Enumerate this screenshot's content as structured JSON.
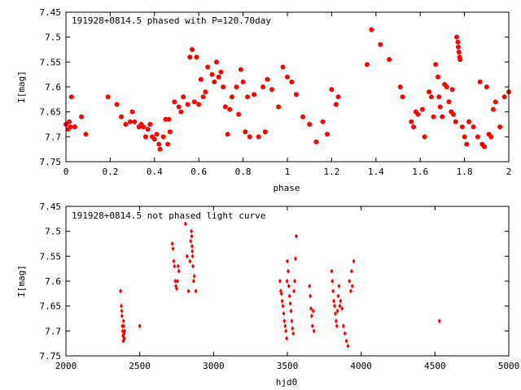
{
  "chart_data": [
    {
      "type": "scatter",
      "title": "191928+0814.5 phased with P=120.70day",
      "xlabel": "phase",
      "ylabel": "I[mag]",
      "xlim": [
        0,
        2
      ],
      "ylim": [
        7.75,
        7.45
      ],
      "y_inverted": true,
      "xticks": [
        0,
        0.2,
        0.4,
        0.6,
        0.8,
        1,
        1.2,
        1.4,
        1.6,
        1.8,
        2
      ],
      "yticks": [
        7.45,
        7.5,
        7.55,
        7.6,
        7.65,
        7.7,
        7.75
      ],
      "marker_color": "#ff0000",
      "marker": "filled-circle",
      "grid": false,
      "points": [
        [
          0.0,
          7.675
        ],
        [
          0.01,
          7.685
        ],
        [
          0.015,
          7.67
        ],
        [
          0.02,
          7.68
        ],
        [
          0.025,
          7.62
        ],
        [
          0.04,
          7.68
        ],
        [
          0.07,
          7.66
        ],
        [
          0.09,
          7.695
        ],
        [
          0.19,
          7.62
        ],
        [
          0.23,
          7.635
        ],
        [
          0.25,
          7.66
        ],
        [
          0.27,
          7.675
        ],
        [
          0.29,
          7.67
        ],
        [
          0.3,
          7.65
        ],
        [
          0.31,
          7.67
        ],
        [
          0.33,
          7.68
        ],
        [
          0.34,
          7.675
        ],
        [
          0.35,
          7.68
        ],
        [
          0.36,
          7.7
        ],
        [
          0.37,
          7.685
        ],
        [
          0.38,
          7.675
        ],
        [
          0.39,
          7.7
        ],
        [
          0.4,
          7.705
        ],
        [
          0.41,
          7.695
        ],
        [
          0.42,
          7.715
        ],
        [
          0.425,
          7.725
        ],
        [
          0.44,
          7.7
        ],
        [
          0.45,
          7.665
        ],
        [
          0.46,
          7.715
        ],
        [
          0.465,
          7.665
        ],
        [
          0.47,
          7.69
        ],
        [
          0.49,
          7.63
        ],
        [
          0.51,
          7.64
        ],
        [
          0.52,
          7.65
        ],
        [
          0.53,
          7.62
        ],
        [
          0.55,
          7.635
        ],
        [
          0.56,
          7.54
        ],
        [
          0.57,
          7.525
        ],
        [
          0.58,
          7.63
        ],
        [
          0.59,
          7.54
        ],
        [
          0.6,
          7.635
        ],
        [
          0.61,
          7.585
        ],
        [
          0.62,
          7.62
        ],
        [
          0.63,
          7.61
        ],
        [
          0.64,
          7.56
        ],
        [
          0.66,
          7.575
        ],
        [
          0.67,
          7.59
        ],
        [
          0.68,
          7.55
        ],
        [
          0.69,
          7.58
        ],
        [
          0.7,
          7.57
        ],
        [
          0.71,
          7.6
        ],
        [
          0.72,
          7.64
        ],
        [
          0.73,
          7.695
        ],
        [
          0.74,
          7.645
        ],
        [
          0.75,
          7.62
        ],
        [
          0.77,
          7.6
        ],
        [
          0.78,
          7.655
        ],
        [
          0.79,
          7.565
        ],
        [
          0.8,
          7.59
        ],
        [
          0.81,
          7.69
        ],
        [
          0.82,
          7.62
        ],
        [
          0.83,
          7.7
        ],
        [
          0.85,
          7.615
        ],
        [
          0.87,
          7.7
        ],
        [
          0.89,
          7.6
        ],
        [
          0.9,
          7.69
        ],
        [
          0.91,
          7.585
        ],
        [
          0.93,
          7.605
        ],
        [
          0.96,
          7.64
        ],
        [
          0.98,
          7.56
        ],
        [
          1.0,
          7.58
        ],
        [
          1.02,
          7.59
        ],
        [
          1.04,
          7.615
        ],
        [
          1.07,
          7.66
        ],
        [
          1.1,
          7.675
        ],
        [
          1.13,
          7.71
        ],
        [
          1.16,
          7.67
        ],
        [
          1.18,
          7.695
        ],
        [
          1.2,
          7.605
        ],
        [
          1.22,
          7.635
        ],
        [
          1.23,
          7.62
        ],
        [
          1.36,
          7.555
        ],
        [
          1.38,
          7.485
        ],
        [
          1.42,
          7.515
        ],
        [
          1.46,
          7.545
        ],
        [
          1.51,
          7.6
        ],
        [
          1.52,
          7.62
        ],
        [
          1.56,
          7.67
        ],
        [
          1.57,
          7.68
        ],
        [
          1.58,
          7.65
        ],
        [
          1.59,
          7.655
        ],
        [
          1.61,
          7.645
        ],
        [
          1.62,
          7.7
        ],
        [
          1.64,
          7.61
        ],
        [
          1.65,
          7.62
        ],
        [
          1.66,
          7.66
        ],
        [
          1.67,
          7.555
        ],
        [
          1.68,
          7.58
        ],
        [
          1.685,
          7.62
        ],
        [
          1.69,
          7.64
        ],
        [
          1.7,
          7.66
        ],
        [
          1.71,
          7.595
        ],
        [
          1.72,
          7.6
        ],
        [
          1.73,
          7.63
        ],
        [
          1.74,
          7.65
        ],
        [
          1.745,
          7.605
        ],
        [
          1.75,
          7.655
        ],
        [
          1.76,
          7.67
        ],
        [
          1.765,
          7.5
        ],
        [
          1.77,
          7.51
        ],
        [
          1.772,
          7.52
        ],
        [
          1.775,
          7.53
        ],
        [
          1.778,
          7.54
        ],
        [
          1.78,
          7.545
        ],
        [
          1.79,
          7.68
        ],
        [
          1.8,
          7.7
        ],
        [
          1.81,
          7.715
        ],
        [
          1.82,
          7.67
        ],
        [
          1.84,
          7.68
        ],
        [
          1.86,
          7.7
        ],
        [
          1.87,
          7.59
        ],
        [
          1.88,
          7.715
        ],
        [
          1.89,
          7.72
        ],
        [
          1.9,
          7.6
        ],
        [
          1.91,
          7.695
        ],
        [
          1.92,
          7.7
        ],
        [
          1.93,
          7.645
        ],
        [
          1.94,
          7.63
        ],
        [
          1.96,
          7.68
        ],
        [
          1.98,
          7.62
        ],
        [
          2.0,
          7.61
        ]
      ]
    },
    {
      "type": "scatter",
      "title": "191928+0814.5 not phased light curve",
      "xlabel": "hjd0",
      "ylabel": "I[mag]",
      "xlim": [
        2000,
        5000
      ],
      "ylim": [
        7.75,
        7.45
      ],
      "y_inverted": true,
      "xticks": [
        2000,
        2500,
        3000,
        3500,
        4000,
        4500,
        5000
      ],
      "yticks": [
        7.45,
        7.5,
        7.55,
        7.6,
        7.65,
        7.7,
        7.75
      ],
      "marker_color": "#ff0000",
      "marker": "diamond",
      "grid": false,
      "points": [
        [
          2370,
          7.62
        ],
        [
          2375,
          7.65
        ],
        [
          2378,
          7.66
        ],
        [
          2380,
          7.67
        ],
        [
          2382,
          7.69
        ],
        [
          2384,
          7.7
        ],
        [
          2386,
          7.71
        ],
        [
          2388,
          7.72
        ],
        [
          2390,
          7.68
        ],
        [
          2392,
          7.69
        ],
        [
          2394,
          7.705
        ],
        [
          2396,
          7.715
        ],
        [
          2398,
          7.7
        ],
        [
          2500,
          7.69
        ],
        [
          2720,
          7.525
        ],
        [
          2725,
          7.535
        ],
        [
          2730,
          7.56
        ],
        [
          2735,
          7.57
        ],
        [
          2740,
          7.6
        ],
        [
          2745,
          7.61
        ],
        [
          2750,
          7.615
        ],
        [
          2755,
          7.6
        ],
        [
          2760,
          7.57
        ],
        [
          2765,
          7.58
        ],
        [
          2810,
          7.485
        ],
        [
          2820,
          7.55
        ],
        [
          2830,
          7.62
        ],
        [
          2840,
          7.56
        ],
        [
          2845,
          7.52
        ],
        [
          2850,
          7.5
        ],
        [
          2852,
          7.51
        ],
        [
          2854,
          7.53
        ],
        [
          2856,
          7.54
        ],
        [
          2858,
          7.55
        ],
        [
          2860,
          7.57
        ],
        [
          2865,
          7.6
        ],
        [
          2870,
          7.59
        ],
        [
          2880,
          7.62
        ],
        [
          3450,
          7.6
        ],
        [
          3455,
          7.62
        ],
        [
          3460,
          7.625
        ],
        [
          3465,
          7.64
        ],
        [
          3470,
          7.65
        ],
        [
          3475,
          7.665
        ],
        [
          3480,
          7.68
        ],
        [
          3485,
          7.69
        ],
        [
          3490,
          7.7
        ],
        [
          3495,
          7.715
        ],
        [
          3498,
          7.6
        ],
        [
          3500,
          7.56
        ],
        [
          3505,
          7.58
        ],
        [
          3510,
          7.61
        ],
        [
          3515,
          7.63
        ],
        [
          3520,
          7.645
        ],
        [
          3525,
          7.66
        ],
        [
          3530,
          7.68
        ],
        [
          3535,
          7.695
        ],
        [
          3540,
          7.705
        ],
        [
          3545,
          7.62
        ],
        [
          3550,
          7.6
        ],
        [
          3555,
          7.555
        ],
        [
          3560,
          7.51
        ],
        [
          3650,
          7.61
        ],
        [
          3655,
          7.63
        ],
        [
          3660,
          7.655
        ],
        [
          3665,
          7.67
        ],
        [
          3670,
          7.69
        ],
        [
          3675,
          7.66
        ],
        [
          3680,
          7.7
        ],
        [
          3800,
          7.58
        ],
        [
          3805,
          7.6
        ],
        [
          3810,
          7.62
        ],
        [
          3815,
          7.64
        ],
        [
          3820,
          7.65
        ],
        [
          3825,
          7.665
        ],
        [
          3830,
          7.68
        ],
        [
          3835,
          7.69
        ],
        [
          3840,
          7.66
        ],
        [
          3845,
          7.63
        ],
        [
          3850,
          7.61
        ],
        [
          3855,
          7.65
        ],
        [
          3860,
          7.64
        ],
        [
          3870,
          7.655
        ],
        [
          3880,
          7.69
        ],
        [
          3890,
          7.705
        ],
        [
          3900,
          7.72
        ],
        [
          3910,
          7.73
        ],
        [
          3920,
          7.6
        ],
        [
          3930,
          7.62
        ],
        [
          3935,
          7.58
        ],
        [
          3940,
          7.61
        ],
        [
          3950,
          7.56
        ],
        [
          4530,
          7.68
        ]
      ]
    }
  ]
}
